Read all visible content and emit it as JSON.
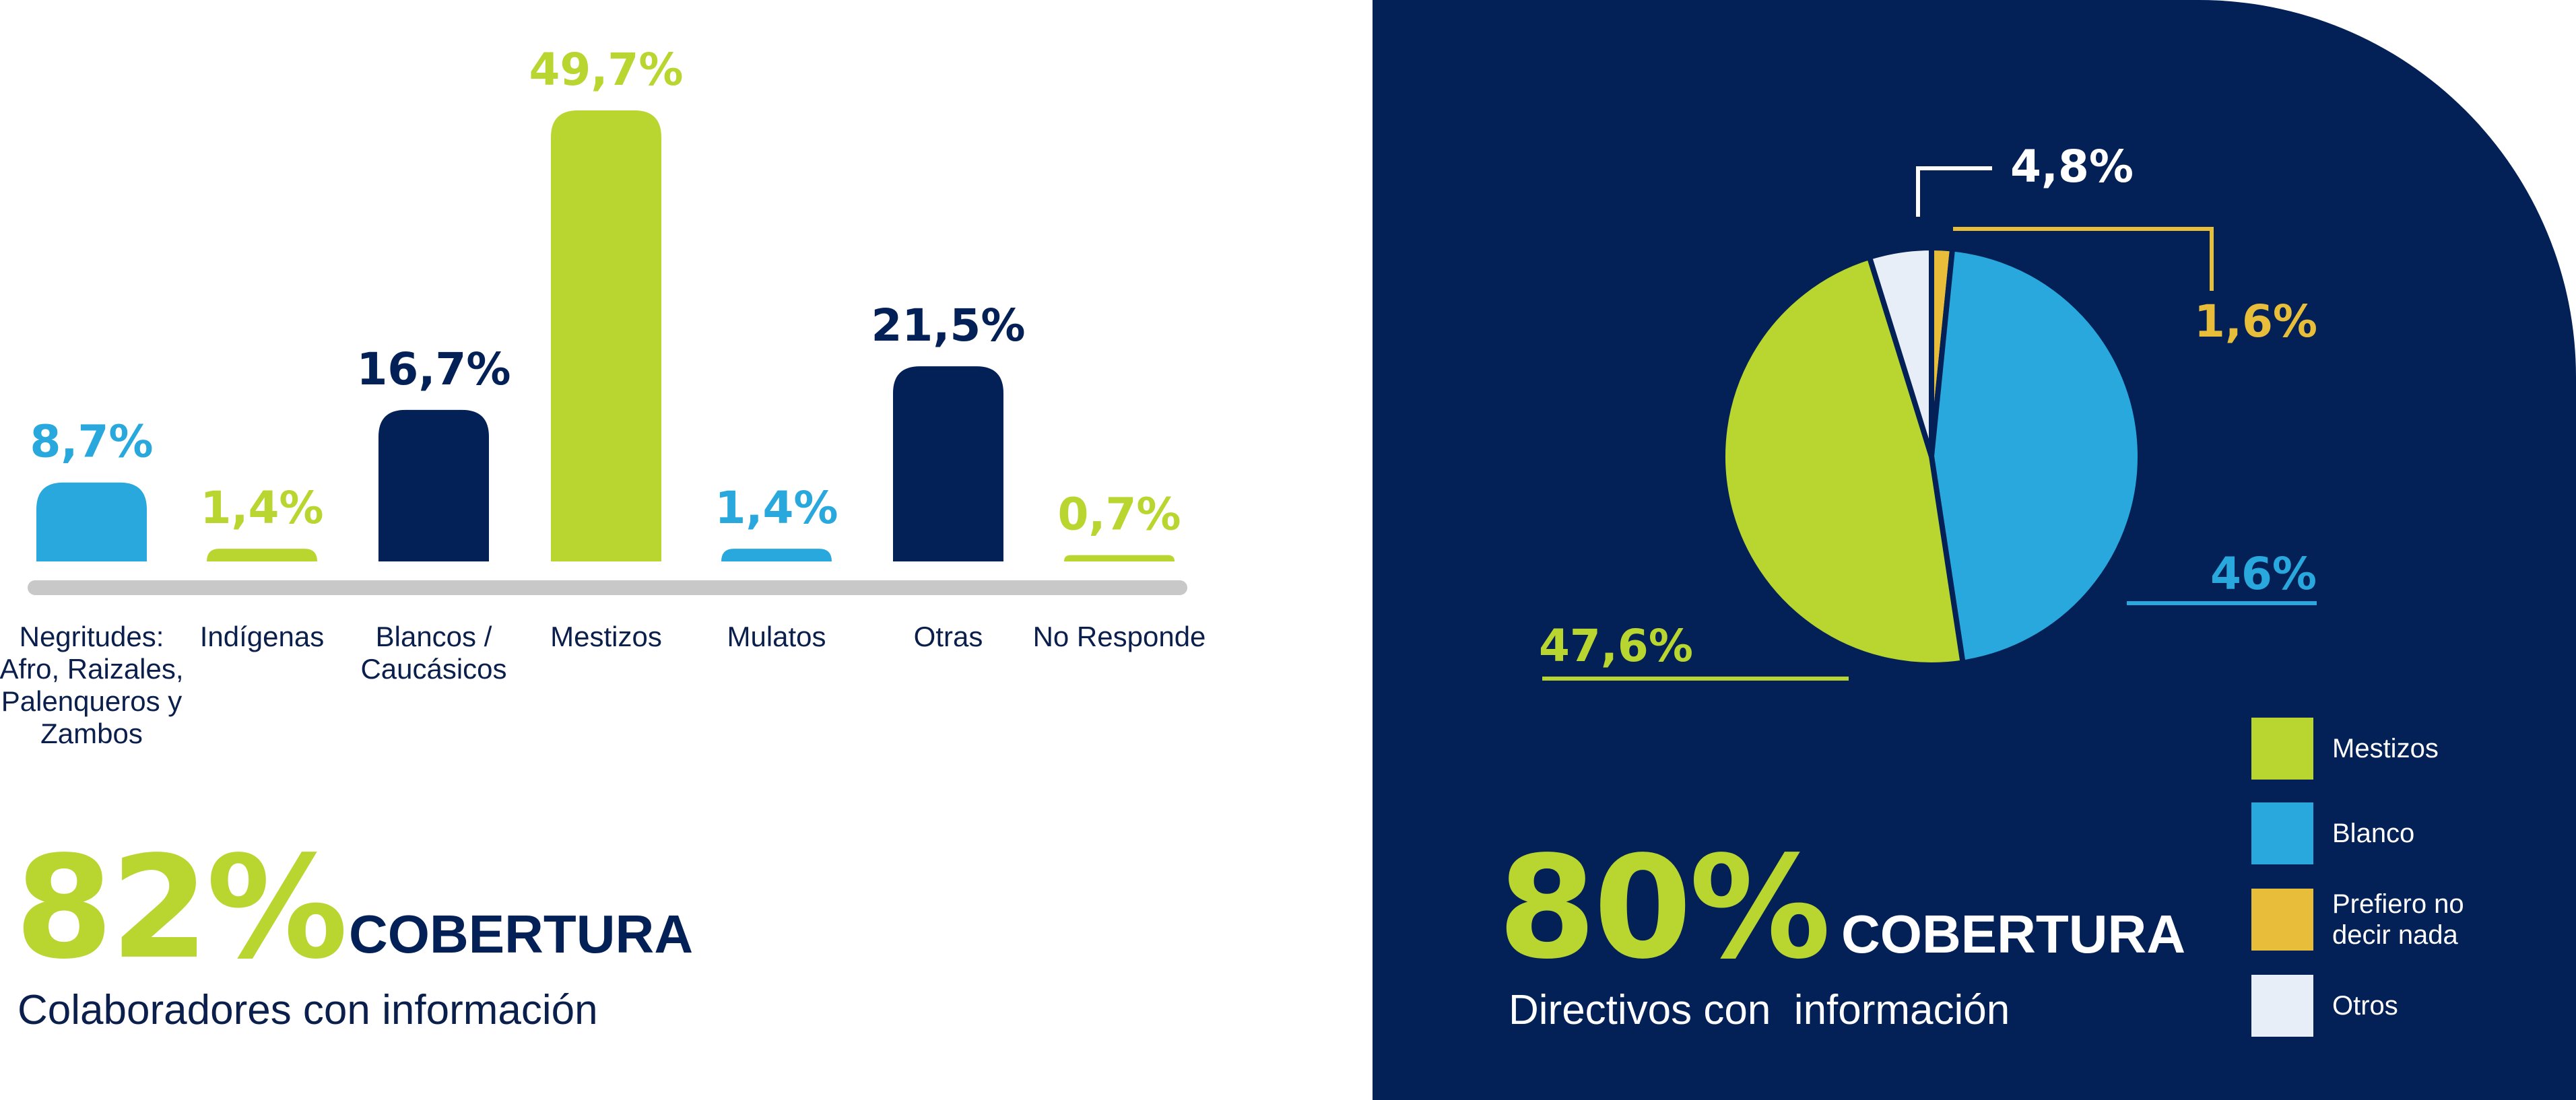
{
  "chart_data": [
    {
      "type": "bar",
      "categories": [
        "Negritudes:\nAfro, Raizales,\nPalenqueros y\nZambos",
        "Indígenas",
        "Blancos /\nCaucásicos",
        "Mestizos",
        "Mulatos",
        "Otras",
        "No Responde"
      ],
      "values": [
        8.7,
        1.4,
        16.7,
        49.7,
        1.4,
        21.5,
        0.7
      ],
      "value_labels": [
        "8,7%",
        "1,4%",
        "16,7%",
        "49,7%",
        "1,4%",
        "21,5%",
        "0,7%"
      ],
      "bar_colors": [
        "#28a8dc",
        "#b9d530",
        "#032157",
        "#b9d530",
        "#28a8dc",
        "#032157",
        "#b9d530"
      ],
      "label_colors": [
        "#28a8dc",
        "#b9d530",
        "#032157",
        "#b9d530",
        "#28a8dc",
        "#032157",
        "#b9d530"
      ],
      "title": "",
      "xlabel": "",
      "ylabel": ""
    },
    {
      "type": "pie",
      "categories": [
        "Mestizos",
        "Blanco",
        "Prefiero no decir nada",
        "Otros"
      ],
      "values": [
        47.6,
        46,
        1.6,
        4.8
      ],
      "value_labels": [
        "47,6%",
        "46%",
        "1,6%",
        "4,8%"
      ],
      "colors": [
        "#b9d530",
        "#28a8dc",
        "#e8bd3a",
        "#e8eef7"
      ],
      "label_colors": [
        "#b9d530",
        "#28a8dc",
        "#e8bd3a",
        "#ffffff"
      ],
      "legend_position": "bottom-right",
      "title": ""
    }
  ],
  "left_summary": {
    "percent": "82%",
    "word": "COBERTURA",
    "caption": "Colaboradores con información"
  },
  "right_summary": {
    "percent": "80%",
    "word": "COBERTURA",
    "caption": "Directivos con  información"
  },
  "legend": [
    {
      "label": "Mestizos",
      "color": "#b9d530"
    },
    {
      "label": "Blanco",
      "color": "#28a8dc"
    },
    {
      "label": "Prefiero no\ndecir nada",
      "color": "#e8bd3a"
    },
    {
      "label": "Otros",
      "color": "#e8eef7"
    }
  ],
  "colors": {
    "navy": "#032157",
    "green": "#b9d530",
    "blue": "#28a8dc",
    "gold": "#e8bd3a",
    "baseline": "#c8c8c8"
  }
}
